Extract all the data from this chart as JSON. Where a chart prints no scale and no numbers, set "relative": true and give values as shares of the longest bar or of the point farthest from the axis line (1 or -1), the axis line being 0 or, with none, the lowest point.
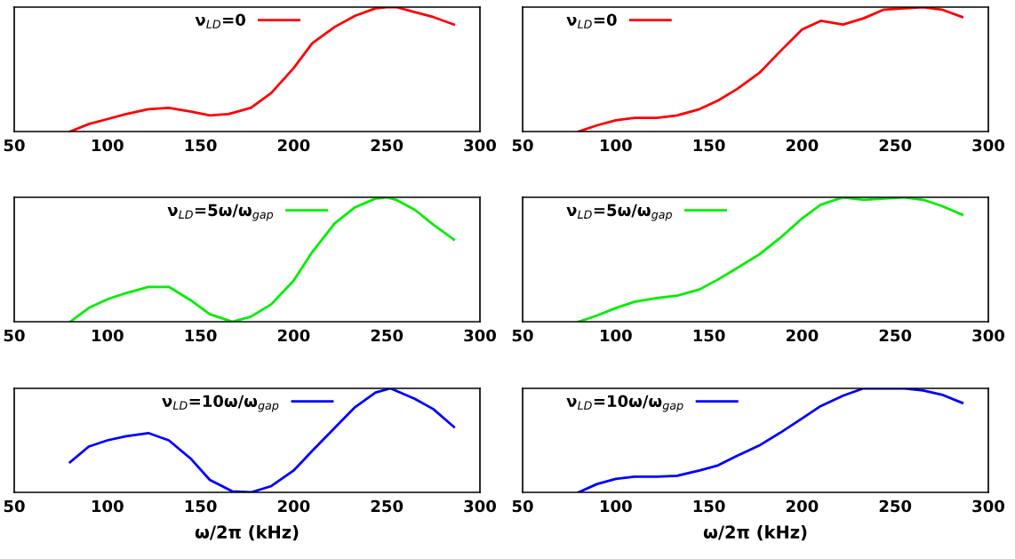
{
  "chart_data": [
    {
      "type": "line",
      "relative": true,
      "x": [
        80,
        90,
        100,
        110,
        122,
        133,
        145,
        155,
        165,
        177,
        188,
        200,
        210,
        222,
        233,
        244,
        250,
        255,
        265,
        275,
        286
      ],
      "xlim": [
        50,
        300
      ],
      "xticks": [
        50,
        100,
        150,
        200,
        250,
        300
      ],
      "tick_labels": "x",
      "legend": "top",
      "series": [
        {
          "name": "ν$_{LD}$=0",
          "color": "#ff0000",
          "values": [
            0,
            0.06,
            0.1,
            0.14,
            0.18,
            0.19,
            0.16,
            0.13,
            0.14,
            0.19,
            0.31,
            0.51,
            0.71,
            0.84,
            0.93,
            0.99,
            1,
            1,
            0.96,
            0.92,
            0.86
          ]
        }
      ]
    },
    {
      "type": "line",
      "relative": true,
      "x": [
        80,
        90,
        100,
        110,
        122,
        133,
        145,
        155,
        165,
        177,
        188,
        200,
        210,
        222,
        233,
        244,
        255,
        265,
        275,
        286
      ],
      "xlim": [
        50,
        300
      ],
      "xticks": [
        50,
        100,
        150,
        200,
        250,
        300
      ],
      "tick_labels": "x",
      "legend": "top left",
      "series": [
        {
          "name": "ν$_{LD}$=0",
          "color": "#ff0000",
          "values": [
            0,
            0.05,
            0.09,
            0.11,
            0.11,
            0.13,
            0.18,
            0.25,
            0.34,
            0.47,
            0.64,
            0.82,
            0.89,
            0.86,
            0.91,
            0.98,
            0.99,
            1,
            0.98,
            0.92
          ]
        }
      ]
    },
    {
      "type": "line",
      "relative": true,
      "x": [
        80,
        90,
        100,
        110,
        122,
        133,
        145,
        155,
        167,
        177,
        188,
        200,
        210,
        222,
        233,
        244,
        250,
        255,
        265,
        275,
        286
      ],
      "xlim": [
        50,
        300
      ],
      "xticks": [
        50,
        100,
        150,
        200,
        250,
        300
      ],
      "tick_labels": "x",
      "legend": "top",
      "series": [
        {
          "name": "ν$_{LD}$=5ω/ω$_{gap}$",
          "color": "#00ee00",
          "values": [
            0,
            0.11,
            0.18,
            0.23,
            0.28,
            0.28,
            0.17,
            0.06,
            0,
            0.04,
            0.14,
            0.33,
            0.56,
            0.79,
            0.92,
            0.99,
            1,
            0.98,
            0.9,
            0.78,
            0.66
          ]
        }
      ]
    },
    {
      "type": "line",
      "relative": true,
      "x": [
        80,
        90,
        100,
        110,
        122,
        133,
        145,
        155,
        165,
        177,
        188,
        200,
        210,
        222,
        233,
        244,
        255,
        265,
        275,
        286
      ],
      "xlim": [
        50,
        300
      ],
      "xticks": [
        50,
        100,
        150,
        200,
        250,
        300
      ],
      "tick_labels": "x",
      "legend": "top left",
      "series": [
        {
          "name": "ν$_{LD}$=5ω/ω$_{gap}$",
          "color": "#00ee00",
          "values": [
            0,
            0.05,
            0.11,
            0.16,
            0.19,
            0.21,
            0.26,
            0.34,
            0.43,
            0.54,
            0.67,
            0.83,
            0.94,
            1,
            0.98,
            0.99,
            1,
            0.98,
            0.93,
            0.86
          ]
        }
      ]
    },
    {
      "type": "line",
      "relative": true,
      "xlabel": "ω/2π (kHz)",
      "x": [
        80,
        90,
        100,
        110,
        122,
        133,
        145,
        155,
        167,
        177,
        188,
        200,
        210,
        222,
        233,
        244,
        252,
        265,
        275,
        286
      ],
      "xlim": [
        50,
        300
      ],
      "xticks": [
        50,
        100,
        150,
        200,
        250,
        300
      ],
      "tick_labels": "x",
      "legend": "top",
      "series": [
        {
          "name": "ν$_{LD}$=10ω/ω$_{gap}$",
          "color": "#0000ff",
          "values": [
            0.29,
            0.44,
            0.5,
            0.54,
            0.57,
            0.5,
            0.32,
            0.12,
            0.01,
            0,
            0.06,
            0.21,
            0.4,
            0.62,
            0.82,
            0.96,
            1,
            0.9,
            0.8,
            0.63
          ]
        }
      ]
    },
    {
      "type": "line",
      "relative": true,
      "xlabel": "ω/2π (kHz)",
      "x": [
        80,
        90,
        100,
        110,
        122,
        133,
        145,
        155,
        165,
        177,
        188,
        200,
        210,
        222,
        233,
        244,
        255,
        265,
        275,
        286
      ],
      "xlim": [
        50,
        300
      ],
      "xticks": [
        50,
        100,
        150,
        200,
        250,
        300
      ],
      "tick_labels": "x",
      "legend": "top left",
      "series": [
        {
          "name": "ν$_{LD}$=10ω/ω$_{gap}$",
          "color": "#0000ff",
          "values": [
            0,
            0.08,
            0.13,
            0.15,
            0.15,
            0.16,
            0.21,
            0.26,
            0.35,
            0.45,
            0.57,
            0.71,
            0.83,
            0.93,
            1,
            1,
            1,
            0.98,
            0.94,
            0.86
          ]
        }
      ]
    }
  ]
}
